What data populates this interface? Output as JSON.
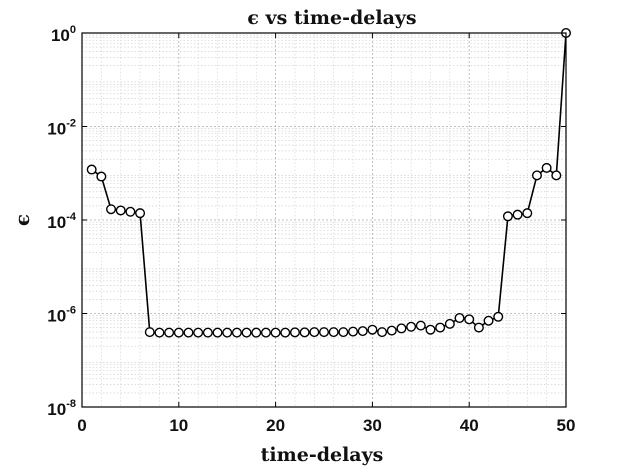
{
  "chart_data": {
    "type": "line",
    "title": "ϵ vs time-delays",
    "xlabel": "time-delays",
    "ylabel": "ϵ",
    "xlim": [
      0,
      50
    ],
    "ylim": [
      1e-08,
      1
    ],
    "yscale": "log",
    "grid": true,
    "minor_grid": true,
    "x_ticks": [
      0,
      10,
      20,
      30,
      40,
      50
    ],
    "y_ticks": [
      {
        "base": "10",
        "exp": "-8",
        "value": 1e-08
      },
      {
        "base": "10",
        "exp": "-6",
        "value": 1e-06
      },
      {
        "base": "10",
        "exp": "-4",
        "value": 0.0001
      },
      {
        "base": "10",
        "exp": "-2",
        "value": 0.01
      },
      {
        "base": "10",
        "exp": "0",
        "value": 1
      }
    ],
    "marker": "open-circle",
    "line_color": "#000000",
    "series": [
      {
        "x": [
          1,
          2,
          3,
          4,
          5,
          6,
          7,
          8,
          9,
          10,
          11,
          12,
          13,
          14,
          15,
          16,
          17,
          18,
          19,
          20,
          21,
          22,
          23,
          24,
          25,
          26,
          27,
          28,
          29,
          30,
          31,
          32,
          33,
          34,
          35,
          36,
          37,
          38,
          39,
          40,
          41,
          42,
          43,
          44,
          45,
          46,
          47,
          48,
          49,
          50
        ],
        "values": [
          0.0012,
          0.00085,
          0.00017,
          0.00016,
          0.00015,
          0.00014,
          4e-07,
          3.9e-07,
          3.9e-07,
          3.9e-07,
          3.9e-07,
          3.9e-07,
          3.9e-07,
          3.9e-07,
          3.9e-07,
          3.9e-07,
          3.9e-07,
          3.9e-07,
          3.9e-07,
          3.9e-07,
          3.9e-07,
          3.95e-07,
          3.95e-07,
          4e-07,
          4e-07,
          4e-07,
          4e-07,
          4.1e-07,
          4.2e-07,
          4.5e-07,
          4e-07,
          4.3e-07,
          4.8e-07,
          5.2e-07,
          5.5e-07,
          4.5e-07,
          5e-07,
          6e-07,
          8e-07,
          7.5e-07,
          5e-07,
          7e-07,
          8.5e-07,
          0.00012,
          0.00013,
          0.00014,
          0.0009,
          0.0013,
          0.0009,
          1.0
        ]
      }
    ]
  }
}
